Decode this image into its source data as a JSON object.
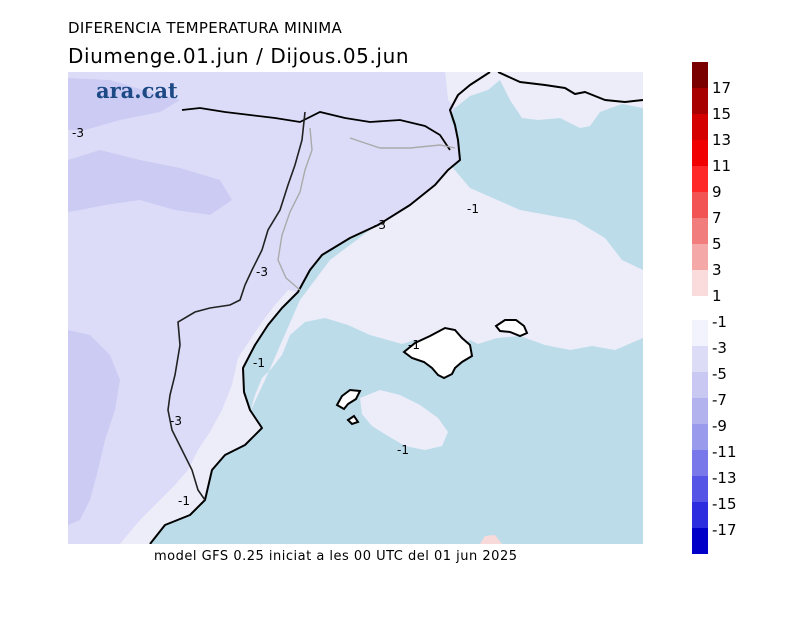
{
  "title": "DIFERENCIA TEMPERATURA MINIMA",
  "subtitle": "Diumenge.01.jun  /  Dijous.05.jun",
  "logo": "ara.cat",
  "footer": "model GFS 0.25 iniciat a les 00 UTC del 01 jun 2025",
  "contour_labels": [
    "-3",
    "-3",
    "-3",
    "-3",
    "-1",
    "-1",
    "-1",
    "-1",
    "-1"
  ],
  "colors": {
    "sea": "#bcdcea",
    "land_m1": "#ededfa",
    "land_m3": "#dcdcf8",
    "land_m5": "#cbcbf4",
    "coast": "#000000",
    "border": "#aaaaaa"
  },
  "legend": {
    "positive": [
      {
        "label": "17",
        "color": "#7a0000"
      },
      {
        "label": "15",
        "color": "#a80000"
      },
      {
        "label": "13",
        "color": "#d40000"
      },
      {
        "label": "11",
        "color": "#f00000"
      },
      {
        "label": "9",
        "color": "#ff2828"
      },
      {
        "label": "7",
        "color": "#f25454"
      },
      {
        "label": "5",
        "color": "#f27d7d"
      },
      {
        "label": "3",
        "color": "#f5a8a8"
      },
      {
        "label": "1",
        "color": "#fbdcdc"
      }
    ],
    "negative": [
      {
        "label": "-1",
        "color": "#f3f3fd"
      },
      {
        "label": "-3",
        "color": "#dcdcf7"
      },
      {
        "label": "-5",
        "color": "#c8c8f3"
      },
      {
        "label": "-7",
        "color": "#b2b2ef"
      },
      {
        "label": "-9",
        "color": "#9a9aec"
      },
      {
        "label": "-11",
        "color": "#7878ea"
      },
      {
        "label": "-13",
        "color": "#5454e6"
      },
      {
        "label": "-15",
        "color": "#2d2de0"
      },
      {
        "label": "-17",
        "color": "#0000c8"
      }
    ]
  }
}
